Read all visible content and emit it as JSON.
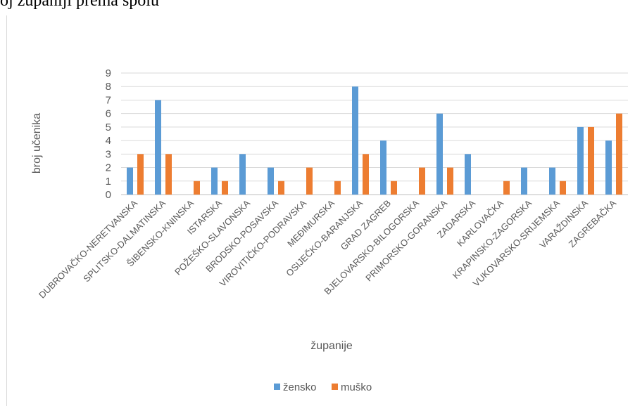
{
  "page": {
    "heading": "oj županiji prema spolu"
  },
  "chart_data": {
    "type": "bar",
    "title": "",
    "xlabel": "županije",
    "ylabel": "broj učenika",
    "ylim": [
      0,
      9
    ],
    "yticks": [
      0,
      1,
      2,
      3,
      4,
      5,
      6,
      7,
      8,
      9
    ],
    "grid": true,
    "legend_position": "bottom",
    "categories": [
      "DUBROVAČKO-NERETVANSKA",
      "SPLITSKO-DALMATINSKA",
      "ŠIBENSKO-KNINSKA",
      "ISTARSKA",
      "POŽEŠKO-SLAVONSKA",
      "BRODSKO-POSAVSKA",
      "VIROVITIČKO-PODRAVSKA",
      "MEĐIMURSKA",
      "OSIJEČKO-BARANJSKA",
      "GRAD ZAGREB",
      "BJELOVARSKO-BILOGORSKA",
      "PRIMORSKO-GORANSKA",
      "ZADARSKA",
      "KARLOVAČKA",
      "KRAPINSKO-ZAGORSKA",
      "VUKOVARSKO-SRIJEMSKA",
      "VARAŽDINSKA",
      "ZAGREBAČKA"
    ],
    "series": [
      {
        "name": "žensko",
        "color": "#5b9bd5",
        "values": [
          2,
          7,
          0,
          2,
          3,
          2,
          0,
          0,
          8,
          4,
          0,
          6,
          3,
          0,
          2,
          2,
          5,
          4
        ]
      },
      {
        "name": "muško",
        "color": "#ed7d31",
        "values": [
          3,
          3,
          1,
          1,
          0,
          1,
          2,
          1,
          3,
          1,
          2,
          2,
          0,
          1,
          0,
          1,
          5,
          6
        ]
      }
    ]
  }
}
